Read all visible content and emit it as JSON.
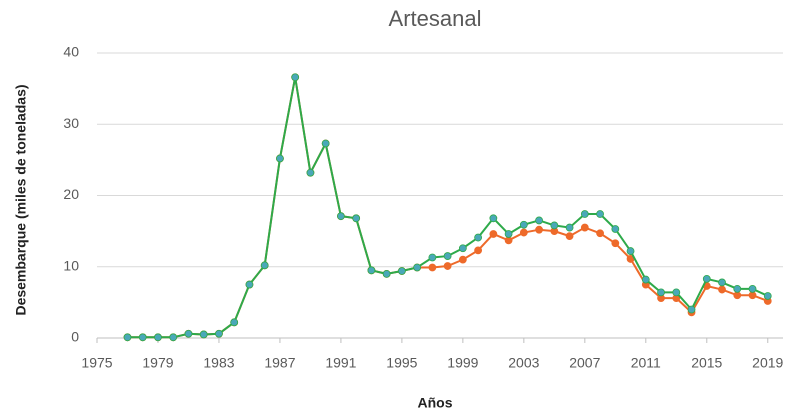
{
  "chart_data": {
    "type": "line",
    "title": "Artesanal",
    "x_label": "Años",
    "y_label": "Desembarque (miles de toneladas)",
    "x": [
      1977,
      1978,
      1979,
      1980,
      1981,
      1982,
      1983,
      1984,
      1985,
      1986,
      1987,
      1988,
      1989,
      1990,
      1991,
      1992,
      1993,
      1994,
      1995,
      1996,
      1997,
      1998,
      1999,
      2000,
      2001,
      2002,
      2003,
      2004,
      2005,
      2006,
      2007,
      2008,
      2009,
      2010,
      2011,
      2012,
      2013,
      2014,
      2015,
      2016,
      2017,
      2018,
      2019
    ],
    "series": [
      {
        "color": "#ee6a2a",
        "marker_color": "#ee6a2a",
        "values": [
          0.1,
          0.1,
          0.1,
          0.1,
          0.6,
          0.5,
          0.6,
          2.2,
          7.5,
          10.2,
          25.2,
          36.6,
          23.2,
          27.3,
          17.1,
          16.8,
          9.5,
          9.0,
          9.4,
          9.9,
          9.9,
          10.1,
          11.0,
          12.3,
          14.6,
          13.7,
          14.8,
          15.2,
          15.0,
          14.3,
          15.5,
          14.7,
          13.3,
          11.1,
          7.5,
          5.6,
          5.6,
          3.6,
          7.3,
          6.8,
          6.0,
          6.0,
          5.2
        ]
      },
      {
        "color": "#2eaa4a",
        "marker_color": "#4aa8b8",
        "values": [
          0.1,
          0.1,
          0.1,
          0.1,
          0.6,
          0.5,
          0.6,
          2.2,
          7.5,
          10.2,
          25.2,
          36.6,
          23.2,
          27.3,
          17.1,
          16.8,
          9.5,
          9.0,
          9.4,
          9.9,
          11.3,
          11.5,
          12.6,
          14.1,
          16.8,
          14.6,
          15.9,
          16.5,
          15.8,
          15.5,
          17.4,
          17.4,
          15.3,
          12.2,
          8.2,
          6.4,
          6.4,
          4.0,
          8.3,
          7.8,
          6.9,
          6.9,
          5.9
        ]
      }
    ],
    "xlim": [
      1975,
      2020
    ],
    "xticks": [
      1975,
      1979,
      1983,
      1987,
      1991,
      1995,
      1999,
      2003,
      2007,
      2011,
      2015,
      2019
    ],
    "ylim": [
      0,
      40
    ],
    "yticks": [
      0,
      10,
      20,
      30,
      40
    ],
    "grid": true
  }
}
